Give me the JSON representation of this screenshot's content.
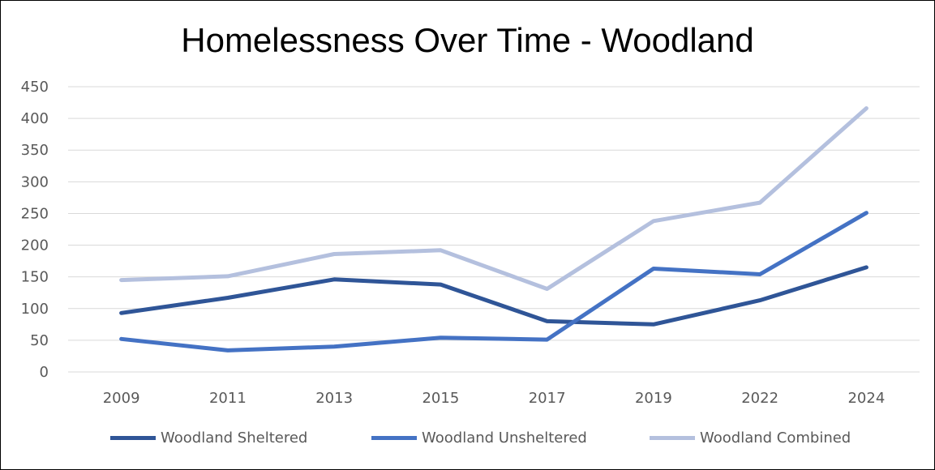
{
  "chart_data": {
    "type": "line",
    "title": "Homelessness Over Time - Woodland",
    "xlabel": "",
    "ylabel": "",
    "categories": [
      "2009",
      "2011",
      "2013",
      "2015",
      "2017",
      "2019",
      "2022",
      "2024"
    ],
    "ylim": [
      0,
      450
    ],
    "yticks": [
      0,
      50,
      100,
      150,
      200,
      250,
      300,
      350,
      400,
      450
    ],
    "grid": true,
    "legend_position": "bottom",
    "series": [
      {
        "name": "Woodland Sheltered",
        "color": "#2F5597",
        "values": [
          93,
          117,
          146,
          138,
          80,
          75,
          113,
          165
        ]
      },
      {
        "name": "Woodland Unsheltered",
        "color": "#4472C4",
        "values": [
          52,
          34,
          40,
          54,
          51,
          163,
          154,
          251
        ]
      },
      {
        "name": "Woodland Combined",
        "color": "#B4C0DE",
        "values": [
          145,
          151,
          186,
          192,
          131,
          238,
          267,
          416
        ]
      }
    ]
  }
}
